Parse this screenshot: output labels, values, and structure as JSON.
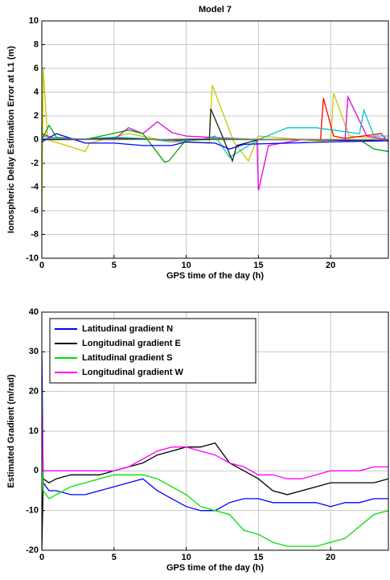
{
  "chart_data": [
    {
      "type": "line",
      "title": "Model 7",
      "xlabel": "GPS time of the day (h)",
      "ylabel": "Ionospheric Delay Estimation Error at L1 (m)",
      "xlim": [
        0,
        24
      ],
      "xticks": [
        0,
        5,
        10,
        15,
        20
      ],
      "ylim": [
        -10,
        10
      ],
      "yticks": [
        -10,
        -8,
        -6,
        -4,
        -2,
        0,
        2,
        4,
        6,
        8,
        10
      ],
      "grid": true,
      "series": [
        {
          "color": "#c8c800",
          "x": [
            0,
            0.1,
            0.4,
            3,
            3.3,
            6,
            9,
            11.6,
            11.8,
            13.3,
            14.3,
            15,
            18,
            20,
            20.2,
            21.3,
            24
          ],
          "values": [
            -6.5,
            6,
            0,
            -1,
            -0.3,
            0.5,
            -0.2,
            -0.3,
            4.6,
            -0.2,
            -1.8,
            0.3,
            0,
            -0.2,
            3.9,
            0.3,
            0
          ]
        },
        {
          "color": "#ff0000",
          "x": [
            0,
            1,
            5,
            8,
            10,
            12,
            14,
            16,
            19.3,
            19.5,
            20.2,
            21,
            23.5,
            24
          ],
          "values": [
            0.5,
            0,
            0.1,
            0,
            -0.1,
            0.1,
            0,
            0,
            0,
            3.5,
            0.3,
            0.1,
            0.5,
            -0.2
          ]
        },
        {
          "color": "#e000e0",
          "x": [
            0,
            2,
            5,
            6,
            7,
            8,
            9,
            10,
            14.9,
            15,
            15.7,
            18,
            21,
            21.2,
            22.5,
            24
          ],
          "values": [
            0,
            0,
            0,
            1,
            0.5,
            1.5,
            0.6,
            0.3,
            0,
            -4.3,
            -0.5,
            0,
            0,
            3.6,
            0.3,
            0
          ]
        },
        {
          "color": "#00c8c8",
          "x": [
            0,
            2,
            5,
            7,
            9,
            11,
            12,
            13,
            15,
            17,
            19,
            22,
            22.3,
            23,
            24
          ],
          "values": [
            0.3,
            0,
            0.2,
            0.1,
            -0.2,
            0,
            0.3,
            -1.5,
            0,
            1,
            1,
            0.5,
            2.5,
            0.3,
            0.3
          ]
        },
        {
          "color": "#00a000",
          "x": [
            0,
            0.5,
            1,
            3,
            6,
            7,
            8.5,
            8.8,
            10,
            13,
            15,
            18,
            22,
            23,
            24
          ],
          "values": [
            0,
            1.2,
            0.2,
            0,
            0.8,
            0.5,
            -1.9,
            -1.8,
            0,
            0,
            0,
            0,
            0,
            -0.8,
            -1
          ]
        },
        {
          "color": "#202020",
          "x": [
            0,
            2,
            5,
            8,
            10,
            11.6,
            11.7,
            12.5,
            13.2,
            13.5,
            15,
            18,
            22,
            24
          ],
          "values": [
            0,
            0,
            0.1,
            0,
            0,
            0,
            2.6,
            0.3,
            -1.8,
            -0.5,
            0,
            0,
            -0.1,
            0
          ]
        },
        {
          "color": "#0000ff",
          "x": [
            0,
            1,
            3,
            5,
            7,
            9,
            10,
            12,
            13,
            14,
            17,
            20,
            24
          ],
          "values": [
            -0.2,
            0.5,
            -0.3,
            -0.3,
            -0.5,
            -0.5,
            -0.2,
            -0.3,
            -0.8,
            -0.4,
            -0.3,
            -0.2,
            -0.1
          ]
        },
        {
          "color": "#808080",
          "x": [
            0,
            4,
            8,
            12,
            16,
            20,
            24
          ],
          "values": [
            0.1,
            0,
            0,
            0.1,
            0,
            0,
            0
          ]
        }
      ]
    },
    {
      "type": "line",
      "xlabel": "GPS time of the day (h)",
      "ylabel": "Estimated Gradient (m/rad)",
      "xlim": [
        0,
        24
      ],
      "xticks": [
        0,
        5,
        10,
        15,
        20
      ],
      "ylim": [
        -20,
        40
      ],
      "yticks": [
        -20,
        -10,
        0,
        10,
        20,
        30,
        40
      ],
      "grid": true,
      "legend": "upper left",
      "x": [
        0,
        0.1,
        0.5,
        1,
        2,
        3,
        4,
        5,
        6,
        7,
        8,
        9,
        10,
        11,
        12,
        13,
        14,
        15,
        16,
        17,
        18,
        19,
        20,
        21,
        22,
        23,
        24
      ],
      "series": [
        {
          "name": "Latitudinal gradient N",
          "color": "#0000ff",
          "values": [
            30,
            -3,
            -5,
            -5,
            -6,
            -6,
            -5,
            -4,
            -3,
            -2,
            -5,
            -7,
            -9,
            -10,
            -10,
            -8,
            -7,
            -7,
            -8,
            -8,
            -8,
            -8,
            -9,
            -8,
            -8,
            -7,
            -7
          ]
        },
        {
          "name": "Longitudinal gradient E",
          "color": "#000000",
          "values": [
            -20,
            -2,
            -3,
            -2,
            -1,
            -1,
            -1,
            0,
            1,
            2,
            4,
            5,
            6,
            6,
            7,
            2,
            0,
            -2,
            -5,
            -6,
            -5,
            -4,
            -3,
            -3,
            -3,
            -3,
            -2
          ]
        },
        {
          "name": "Latitudinal gradient S",
          "color": "#00e000",
          "values": [
            20,
            -5,
            -7,
            -6,
            -4,
            -3,
            -2,
            -1,
            -1,
            -1,
            -2,
            -4,
            -6,
            -9,
            -10,
            -11,
            -15,
            -16,
            -18,
            -19,
            -19,
            -19,
            -18,
            -17,
            -14,
            -11,
            -10
          ]
        },
        {
          "name": "Longitudinal gradient W",
          "color": "#ff00ff",
          "values": [
            16,
            0,
            0,
            0,
            0,
            0,
            0,
            0,
            1,
            3,
            5,
            6,
            6,
            5,
            4,
            2,
            1,
            -1,
            -1,
            -2,
            -2,
            -1,
            0,
            0,
            0,
            1,
            1
          ]
        }
      ]
    }
  ]
}
